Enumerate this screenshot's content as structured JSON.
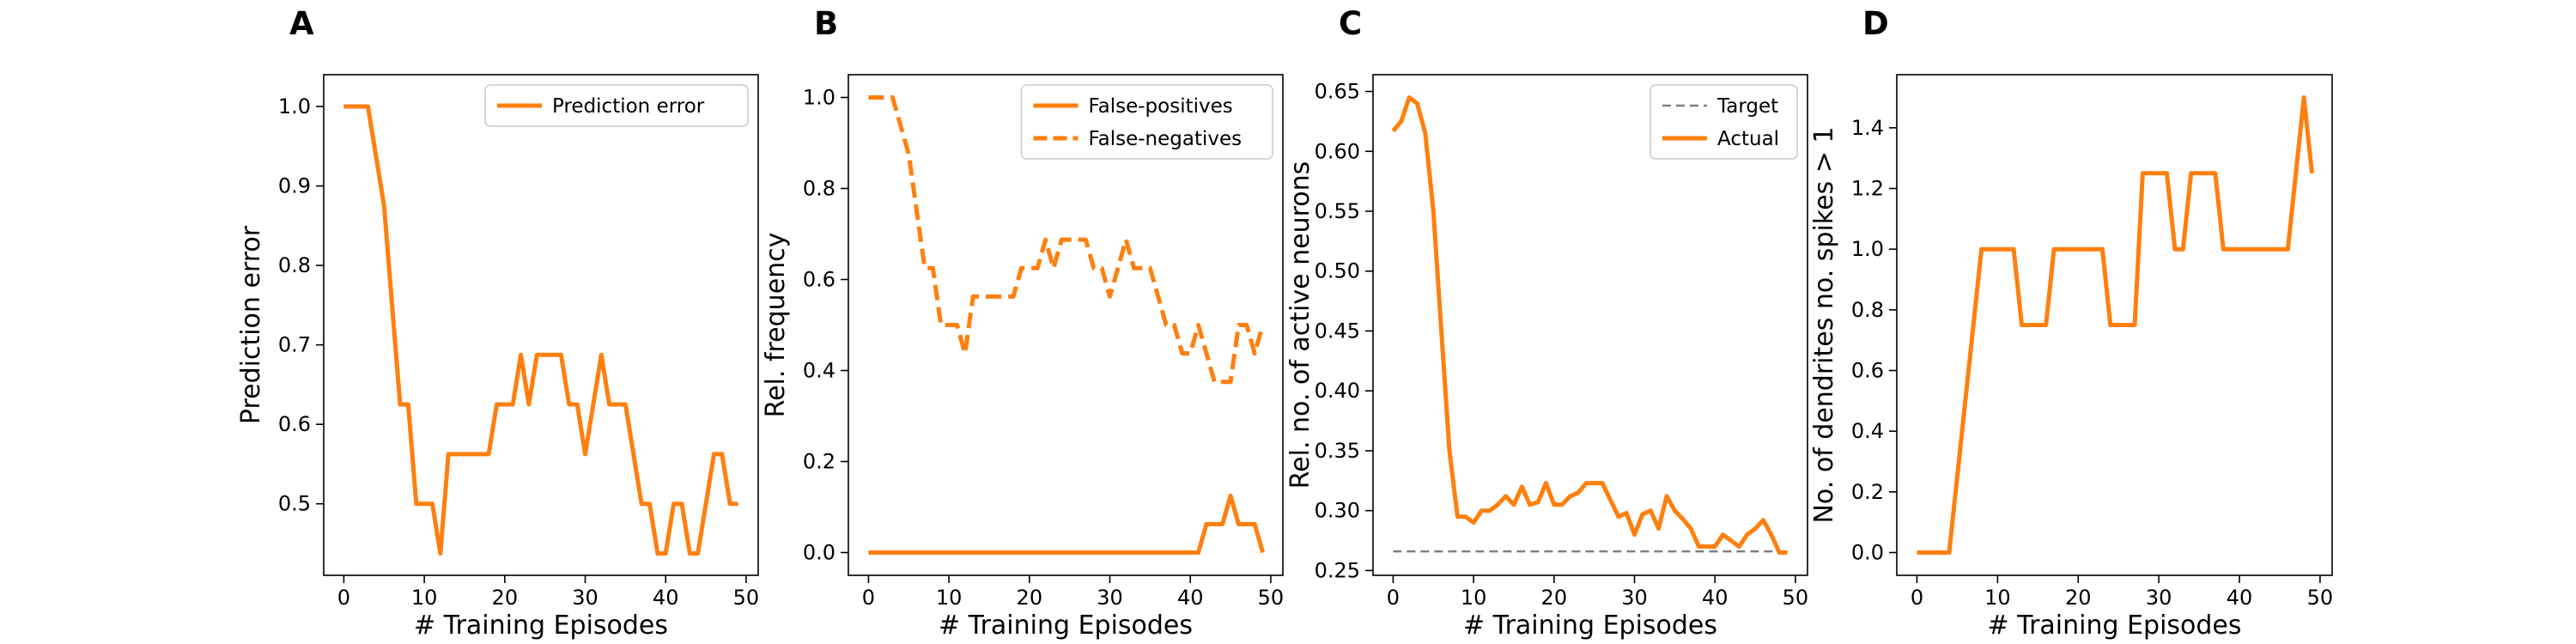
{
  "chart_data": [
    {
      "panel": "A",
      "type": "line",
      "xlabel": "# Training Episodes",
      "ylabel": "Prediction error",
      "xlim": [
        -2.5,
        51.5
      ],
      "ylim": [
        0.41,
        1.04
      ],
      "xticks": [
        0,
        10,
        20,
        30,
        40,
        50
      ],
      "yticks": [
        0.5,
        0.6,
        0.7,
        0.8,
        0.9,
        1.0
      ],
      "ytick_labels": [
        "0.5",
        "0.6",
        "0.7",
        "0.8",
        "0.9",
        "1.0"
      ],
      "legend": "top-right",
      "series": [
        {
          "name": "Prediction error",
          "color": "#ff7f0e",
          "dash": "solid",
          "legend": true,
          "x": [
            0,
            1,
            2,
            3,
            4,
            5,
            6,
            7,
            8,
            9,
            10,
            11,
            12,
            13,
            14,
            15,
            16,
            17,
            18,
            19,
            20,
            21,
            22,
            23,
            24,
            25,
            26,
            27,
            28,
            29,
            30,
            31,
            32,
            33,
            34,
            35,
            36,
            37,
            38,
            39,
            40,
            41,
            42,
            43,
            44,
            45,
            46,
            47,
            48,
            49
          ],
          "y": [
            1.0,
            1.0,
            1.0,
            1.0,
            0.9375,
            0.875,
            0.75,
            0.625,
            0.625,
            0.5,
            0.5,
            0.5,
            0.4375,
            0.5625,
            0.5625,
            0.5625,
            0.5625,
            0.5625,
            0.5625,
            0.625,
            0.625,
            0.625,
            0.6875,
            0.625,
            0.6875,
            0.6875,
            0.6875,
            0.6875,
            0.625,
            0.625,
            0.5625,
            0.625,
            0.6875,
            0.625,
            0.625,
            0.625,
            0.5625,
            0.5,
            0.5,
            0.4375,
            0.4375,
            0.5,
            0.5,
            0.4375,
            0.4375,
            0.5,
            0.5625,
            0.5625,
            0.5,
            0.5
          ]
        }
      ]
    },
    {
      "panel": "B",
      "type": "line",
      "xlabel": "# Training Episodes",
      "ylabel": "Rel. frequency",
      "xlim": [
        -2.5,
        51.5
      ],
      "ylim": [
        -0.05,
        1.05
      ],
      "xticks": [
        0,
        10,
        20,
        30,
        40,
        50
      ],
      "yticks": [
        0.0,
        0.2,
        0.4,
        0.6,
        0.8,
        1.0
      ],
      "ytick_labels": [
        "0.0",
        "0.2",
        "0.4",
        "0.6",
        "0.8",
        "1.0"
      ],
      "legend": "top-right",
      "series": [
        {
          "name": "False-positives",
          "color": "#ff7f0e",
          "dash": "solid",
          "legend": true,
          "x": [
            0,
            1,
            2,
            3,
            4,
            5,
            6,
            7,
            8,
            9,
            10,
            11,
            12,
            13,
            14,
            15,
            16,
            17,
            18,
            19,
            20,
            21,
            22,
            23,
            24,
            25,
            26,
            27,
            28,
            29,
            30,
            31,
            32,
            33,
            34,
            35,
            36,
            37,
            38,
            39,
            40,
            41,
            42,
            43,
            44,
            45,
            46,
            47,
            48,
            49
          ],
          "y": [
            0,
            0,
            0,
            0,
            0,
            0,
            0,
            0,
            0,
            0,
            0,
            0,
            0,
            0,
            0,
            0,
            0,
            0,
            0,
            0,
            0,
            0,
            0,
            0,
            0,
            0,
            0,
            0,
            0,
            0,
            0,
            0,
            0,
            0,
            0,
            0,
            0,
            0,
            0,
            0,
            0,
            0,
            0.0625,
            0.0625,
            0.0625,
            0.125,
            0.0625,
            0.0625,
            0.0625,
            0
          ]
        },
        {
          "name": "False-negatives",
          "color": "#ff7f0e",
          "dash": "dashed",
          "legend": true,
          "x": [
            0,
            1,
            2,
            3,
            4,
            5,
            6,
            7,
            8,
            9,
            10,
            11,
            12,
            13,
            14,
            15,
            16,
            17,
            18,
            19,
            20,
            21,
            22,
            23,
            24,
            25,
            26,
            27,
            28,
            29,
            30,
            31,
            32,
            33,
            34,
            35,
            36,
            37,
            38,
            39,
            40,
            41,
            42,
            43,
            44,
            45,
            46,
            47,
            48,
            49
          ],
          "y": [
            1.0,
            1.0,
            1.0,
            1.0,
            0.9375,
            0.875,
            0.75,
            0.625,
            0.625,
            0.5,
            0.5,
            0.5,
            0.4375,
            0.5625,
            0.5625,
            0.5625,
            0.5625,
            0.5625,
            0.5625,
            0.625,
            0.625,
            0.625,
            0.6875,
            0.625,
            0.6875,
            0.6875,
            0.6875,
            0.6875,
            0.625,
            0.625,
            0.5625,
            0.625,
            0.6875,
            0.625,
            0.625,
            0.625,
            0.5625,
            0.5,
            0.5,
            0.4375,
            0.4375,
            0.5,
            0.4375,
            0.375,
            0.375,
            0.375,
            0.5,
            0.5,
            0.4375,
            0.5
          ]
        }
      ]
    },
    {
      "panel": "C",
      "type": "line",
      "xlabel": "# Training Episodes",
      "ylabel": "Rel. no. of active neurons",
      "xlim": [
        -2.5,
        51.5
      ],
      "ylim": [
        0.246,
        0.664
      ],
      "xticks": [
        0,
        10,
        20,
        30,
        40,
        50
      ],
      "yticks": [
        0.25,
        0.3,
        0.35,
        0.4,
        0.45,
        0.5,
        0.55,
        0.6,
        0.65
      ],
      "ytick_labels": [
        "0.25",
        "0.30",
        "0.35",
        "0.40",
        "0.45",
        "0.50",
        "0.55",
        "0.60",
        "0.65"
      ],
      "legend": "top-right",
      "series": [
        {
          "name": "Target",
          "color": "#808080",
          "dash": "dashed",
          "legend": true,
          "x": [
            0,
            49
          ],
          "y": [
            0.266,
            0.266
          ]
        },
        {
          "name": "Actual",
          "color": "#ff7f0e",
          "dash": "solid",
          "legend": true,
          "x": [
            0,
            1,
            2,
            3,
            4,
            5,
            6,
            7,
            8,
            9,
            10,
            11,
            12,
            13,
            14,
            15,
            16,
            17,
            18,
            19,
            20,
            21,
            22,
            23,
            24,
            25,
            26,
            27,
            28,
            29,
            30,
            31,
            32,
            33,
            34,
            35,
            36,
            37,
            38,
            39,
            40,
            41,
            42,
            43,
            44,
            45,
            46,
            47,
            48,
            49
          ],
          "y": [
            0.617,
            0.625,
            0.645,
            0.64,
            0.615,
            0.55,
            0.45,
            0.35,
            0.295,
            0.295,
            0.29,
            0.3,
            0.3,
            0.305,
            0.312,
            0.305,
            0.32,
            0.305,
            0.307,
            0.323,
            0.305,
            0.305,
            0.312,
            0.315,
            0.323,
            0.323,
            0.323,
            0.309,
            0.295,
            0.298,
            0.28,
            0.297,
            0.3,
            0.285,
            0.312,
            0.3,
            0.293,
            0.285,
            0.27,
            0.27,
            0.27,
            0.28,
            0.275,
            0.27,
            0.28,
            0.285,
            0.292,
            0.28,
            0.265,
            0.265
          ]
        }
      ]
    },
    {
      "panel": "D",
      "type": "line",
      "xlabel": "# Training Episodes",
      "ylabel": "No. of dendrites no. spikes > 1",
      "xlim": [
        -2.5,
        51.5
      ],
      "ylim": [
        -0.075,
        1.575
      ],
      "xticks": [
        0,
        10,
        20,
        30,
        40,
        50
      ],
      "yticks": [
        0.0,
        0.2,
        0.4,
        0.6,
        0.8,
        1.0,
        1.2,
        1.4
      ],
      "ytick_labels": [
        "0.0",
        "0.2",
        "0.4",
        "0.6",
        "0.8",
        "1.0",
        "1.2",
        "1.4"
      ],
      "legend": "none",
      "series": [
        {
          "name": "",
          "color": "#ff7f0e",
          "dash": "solid",
          "legend": false,
          "x": [
            0,
            1,
            2,
            3,
            4,
            5,
            6,
            7,
            8,
            9,
            10,
            11,
            12,
            13,
            14,
            15,
            16,
            17,
            18,
            19,
            20,
            21,
            22,
            23,
            24,
            25,
            26,
            27,
            28,
            29,
            30,
            31,
            32,
            33,
            34,
            35,
            36,
            37,
            38,
            39,
            40,
            41,
            42,
            43,
            44,
            45,
            46,
            47,
            48,
            49
          ],
          "y": [
            0,
            0,
            0,
            0,
            0,
            0.25,
            0.5,
            0.75,
            1.0,
            1.0,
            1.0,
            1.0,
            1.0,
            0.75,
            0.75,
            0.75,
            0.75,
            1.0,
            1.0,
            1.0,
            1.0,
            1.0,
            1.0,
            1.0,
            0.75,
            0.75,
            0.75,
            0.75,
            1.25,
            1.25,
            1.25,
            1.25,
            1.0,
            1.0,
            1.25,
            1.25,
            1.25,
            1.25,
            1.0,
            1.0,
            1.0,
            1.0,
            1.0,
            1.0,
            1.0,
            1.0,
            1.0,
            1.25,
            1.5,
            1.25
          ]
        }
      ]
    }
  ]
}
